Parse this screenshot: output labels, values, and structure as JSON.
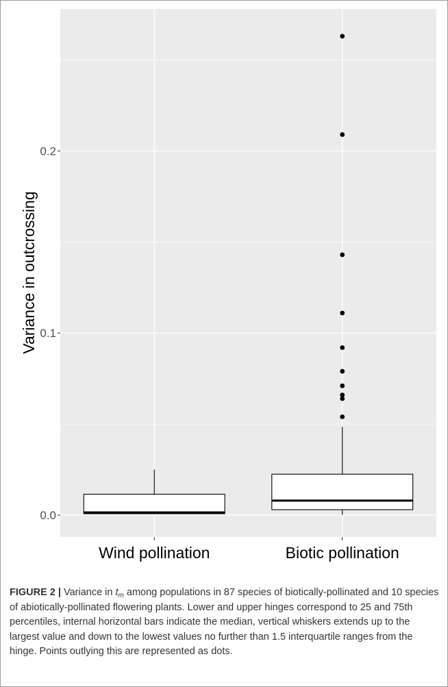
{
  "chart_data": {
    "type": "box",
    "ylabel": "Variance in outcrossing",
    "xlabel": "",
    "ylim": [
      -0.012,
      0.278
    ],
    "yticks": [
      0.0,
      0.1,
      0.2
    ],
    "ytick_labels": [
      "0.0",
      "0.1",
      "0.2"
    ],
    "grid": true,
    "categories": [
      "Wind pollination",
      "Biotic pollination"
    ],
    "boxes": [
      {
        "category": "Wind pollination",
        "whisker_low": 0.0005,
        "q1": 0.0008,
        "median": 0.0015,
        "q3": 0.0115,
        "whisker_high": 0.025,
        "outliers": []
      },
      {
        "category": "Biotic pollination",
        "whisker_low": 0.0002,
        "q1": 0.003,
        "median": 0.008,
        "q3": 0.0225,
        "whisker_high": 0.0485,
        "outliers": [
          0.054,
          0.064,
          0.066,
          0.071,
          0.079,
          0.092,
          0.111,
          0.143,
          0.209,
          0.263
        ]
      }
    ],
    "colors": {
      "panel": "#ebebeb",
      "grid": "#ffffff",
      "box_fill": "#ffffff",
      "stroke": "#000000"
    }
  },
  "caption": {
    "label": "FIGURE 2 |",
    "part1": " Variance in ",
    "symbol": "t",
    "subscript": "m",
    "part2": " among populations in 87 species of biotically-pollinated and 10 species of abiotically-pollinated flowering plants. Lower and upper hinges correspond to 25 and 75th percentiles, internal horizontal bars indicate the median, vertical whiskers extends up to the largest value and down to the lowest values no further than 1.5 interquartile ranges from the hinge. Points outlying this are represented as dots."
  }
}
